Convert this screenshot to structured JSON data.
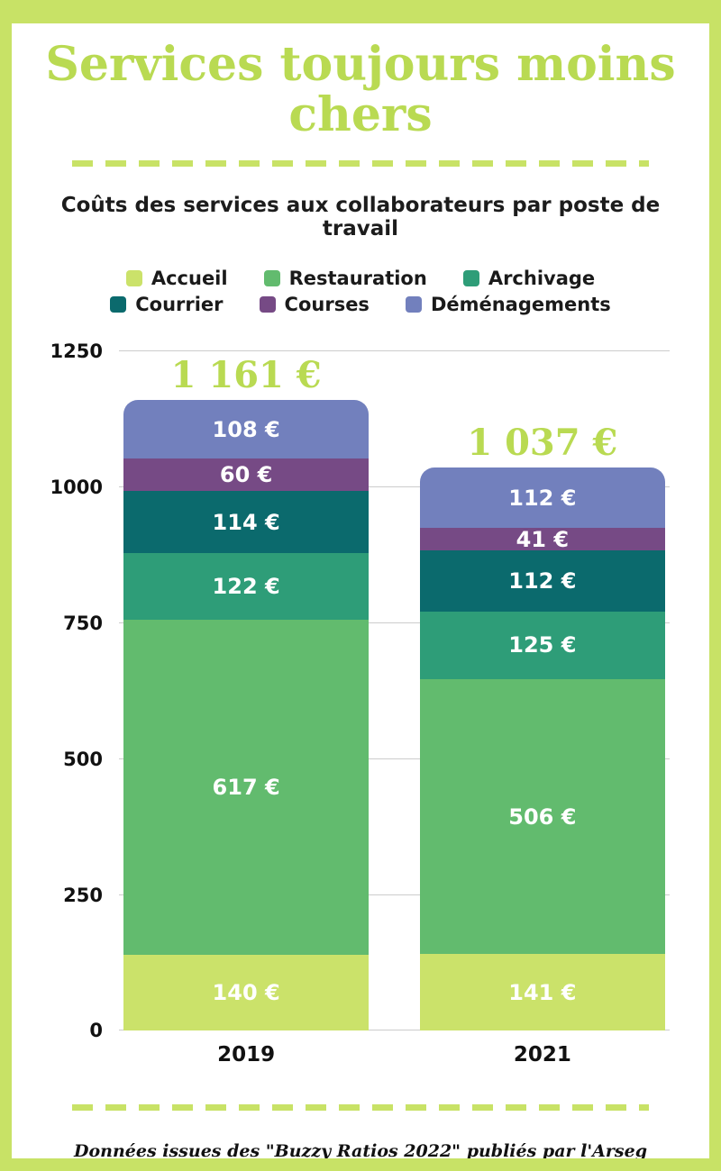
{
  "page": {
    "title": "Services toujours moins chers",
    "footer": "Données issues des \"Buzzy Ratios 2022\" publiés par l'Arseg"
  },
  "colors": {
    "frame": "#c8e266",
    "title": "#b9da52",
    "grid": "#cccccc",
    "ink": "#1c1c1c"
  },
  "chart_data": {
    "type": "bar",
    "stacked": true,
    "title": "Coûts des services aux collaborateurs par poste de travail",
    "categories": [
      "2019",
      "2021"
    ],
    "series": [
      {
        "name": "Accueil",
        "color": "#cbe26a",
        "values": [
          140,
          141
        ],
        "labels": [
          "140 €",
          "141 €"
        ]
      },
      {
        "name": "Restauration",
        "color": "#62bb6e",
        "values": [
          617,
          506
        ],
        "labels": [
          "617 €",
          "506 €"
        ]
      },
      {
        "name": "Archivage",
        "color": "#2e9d78",
        "values": [
          122,
          125
        ],
        "labels": [
          "122 €",
          "125 €"
        ]
      },
      {
        "name": "Courrier",
        "color": "#0b6a6d",
        "values": [
          114,
          112
        ],
        "labels": [
          "114 €",
          "112 €"
        ]
      },
      {
        "name": "Courses",
        "color": "#764a85",
        "values": [
          60,
          41
        ],
        "labels": [
          "60 €",
          "41 €"
        ]
      },
      {
        "name": "Déménagements",
        "color": "#7280bd",
        "values": [
          108,
          112
        ],
        "labels": [
          "108 €",
          "112 €"
        ]
      }
    ],
    "totals": [
      "1 161 €",
      "1 037 €"
    ],
    "y_ticks": [
      0,
      250,
      500,
      750,
      1000,
      1250
    ],
    "ylim": [
      0,
      1250
    ],
    "grid": true,
    "legend_position": "top",
    "legend_rows": [
      [
        "Accueil",
        "Restauration",
        "Archivage"
      ],
      [
        "Courrier",
        "Courses",
        "Déménagements"
      ]
    ]
  }
}
